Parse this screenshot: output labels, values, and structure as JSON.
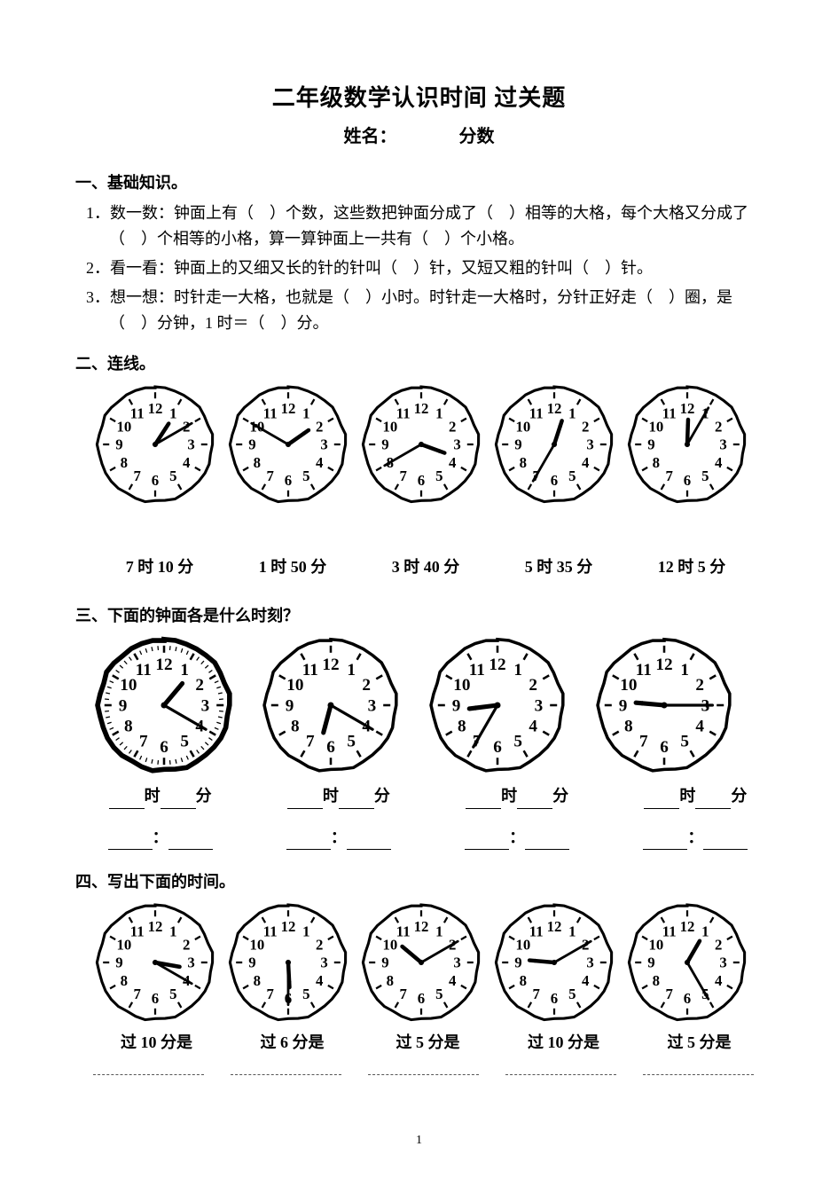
{
  "title": "二年级数学认识时间  过关题",
  "name_label": "姓名：",
  "score_label": "分数",
  "section1": {
    "heading": "一、基础知识。",
    "q1": "1．数一数：钟面上有（　）个数，这些数把钟面分成了（　）相等的大格，每个大格又分成了（　）个相等的小格，算一算钟面上一共有（　）个小格。",
    "q2": "2．看一看：钟面上的又细又长的针的针叫（　）针，又短又粗的针叫（　）针。",
    "q3": "3．想一想：时针走一大格，也就是（　）小时。时针走一大格时，分针正好走（　）圈，是（　）分钟，1 时＝（　）分。"
  },
  "section2": {
    "heading": "二、连线。",
    "clocks": [
      {
        "hour_angle": 33,
        "minute_angle": 60
      },
      {
        "hour_angle": 55,
        "minute_angle": 300
      },
      {
        "hour_angle": 110,
        "minute_angle": 240
      },
      {
        "hour_angle": 18,
        "minute_angle": 210
      },
      {
        "hour_angle": 2,
        "minute_angle": 30
      }
    ],
    "labels": [
      "7 时 10 分",
      "1 时 50 分",
      "3 时 40 分",
      "5 时 35 分",
      "12 时 5 分"
    ]
  },
  "section3": {
    "heading": "三、下面的钟面各是什么时刻？",
    "clocks": [
      {
        "hour_angle": 40,
        "minute_angle": 120,
        "style": "thick"
      },
      {
        "hour_angle": 195,
        "minute_angle": 120
      },
      {
        "hour_angle": 263,
        "minute_angle": 210
      },
      {
        "hour_angle": 275,
        "minute_angle": 90
      }
    ],
    "fill_word_hour": "时",
    "fill_word_min": "分",
    "colon": "："
  },
  "section4": {
    "heading": "四、写出下面的时间。",
    "clocks": [
      {
        "hour_angle": 100,
        "minute_angle": 120
      },
      {
        "hour_angle": 177,
        "minute_angle": 180
      },
      {
        "hour_angle": 310,
        "minute_angle": 60
      },
      {
        "hour_angle": 275,
        "minute_angle": 60
      },
      {
        "hour_angle": 30,
        "minute_angle": 150
      }
    ],
    "labels": [
      "过 10 分是",
      "过 6 分是",
      "过 5 分是",
      "过 10 分是",
      "过 5 分是"
    ]
  },
  "page_number": "1",
  "clock_style": {
    "size_small": 140,
    "size_big": 160,
    "number_fontsize": 12,
    "outline_stroke": "#000000",
    "face_fill": "#ffffff"
  }
}
